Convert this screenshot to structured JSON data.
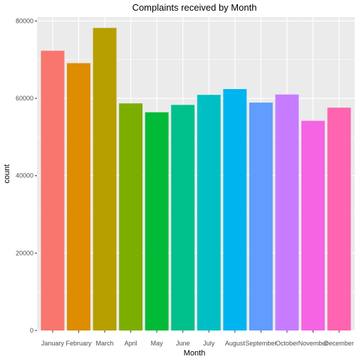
{
  "chart_data": {
    "type": "bar",
    "title": "Complaints received by Month",
    "xlabel": "Month",
    "ylabel": "count",
    "categories": [
      "January",
      "February",
      "March",
      "April",
      "May",
      "June",
      "July",
      "August",
      "September",
      "October",
      "November",
      "December"
    ],
    "values": [
      72300,
      69100,
      78200,
      58700,
      56400,
      58300,
      60900,
      62400,
      58900,
      61000,
      54200,
      57600
    ],
    "colors": [
      "#F8766D",
      "#DE8C00",
      "#B79F00",
      "#7CAE00",
      "#00BA38",
      "#00C08B",
      "#00BFC4",
      "#00B4F0",
      "#619CFF",
      "#C77CFF",
      "#F564E3",
      "#FF64B0"
    ],
    "ylim": [
      0,
      81000
    ],
    "yticks": [
      0,
      20000,
      40000,
      60000,
      80000
    ],
    "ytick_labels": [
      "0",
      "20000",
      "40000",
      "60000",
      "80000"
    ],
    "grid": true,
    "panel_background": "#EBEBEB",
    "grid_color": "#FFFFFF",
    "legend": "none"
  }
}
